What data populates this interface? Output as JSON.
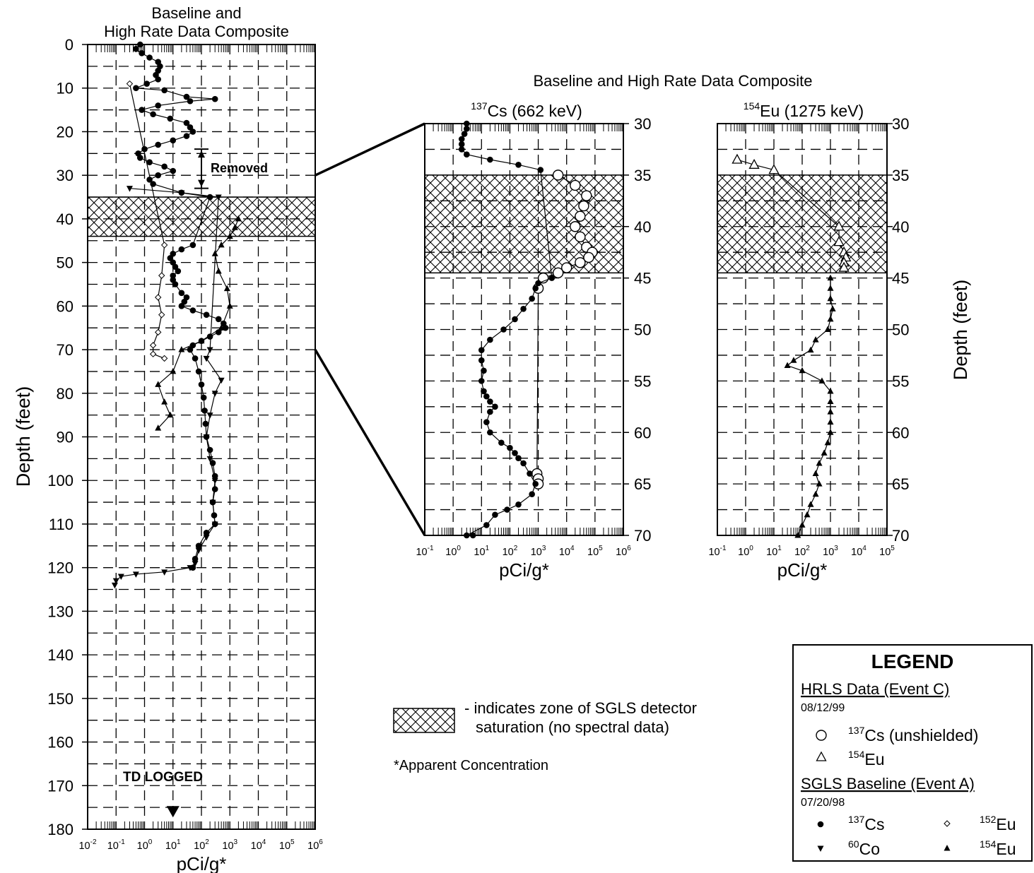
{
  "chart_data": [
    {
      "type": "scatter",
      "title": "Baseline and\nHigh Rate Data Composite",
      "xlabel": "pCi/g*",
      "ylabel": "Depth (feet)",
      "x_scale": "log",
      "xlim": [
        0.01,
        1000000
      ],
      "ylim": [
        0,
        180
      ],
      "x_tick_labels": [
        "10-2",
        "10-1",
        "100",
        "101",
        "102",
        "103",
        "104",
        "105",
        "106"
      ],
      "y_ticks": [
        0,
        10,
        20,
        30,
        40,
        50,
        60,
        70,
        80,
        90,
        100,
        110,
        120,
        130,
        140,
        150,
        160,
        170,
        180
      ],
      "saturation_zone": [
        35,
        44
      ],
      "annotations": [
        {
          "text": "Removed",
          "depth_range": [
            24,
            33
          ]
        },
        {
          "text": "TD LOGGED",
          "depth": 176,
          "value": 10
        }
      ],
      "series": [
        {
          "name": "137Cs",
          "marker": "circle-filled",
          "points": [
            [
              0.7,
              0
            ],
            [
              0.5,
              1
            ],
            [
              0.8,
              2
            ],
            [
              1.5,
              3
            ],
            [
              3,
              4
            ],
            [
              3.5,
              5
            ],
            [
              3,
              6
            ],
            [
              2.5,
              7
            ],
            [
              3,
              8
            ],
            [
              1.2,
              9
            ],
            [
              0.5,
              10
            ],
            [
              5,
              10.5
            ],
            [
              30,
              12
            ],
            [
              300,
              12.5
            ],
            [
              40,
              13
            ],
            [
              3,
              14
            ],
            [
              0.8,
              15
            ],
            [
              2,
              16
            ],
            [
              8,
              17
            ],
            [
              30,
              18
            ],
            [
              40,
              19
            ],
            [
              50,
              20
            ],
            [
              30,
              21
            ],
            [
              10,
              22
            ],
            [
              3,
              23
            ],
            [
              1,
              24
            ],
            [
              0.6,
              25
            ],
            [
              0.7,
              26
            ],
            [
              1.5,
              27
            ],
            [
              5,
              28
            ],
            [
              10,
              29
            ],
            [
              3,
              30
            ],
            [
              1.5,
              31
            ],
            [
              2,
              32
            ],
            [
              20,
              34
            ],
            [
              200,
              35
            ],
            [
              50,
              46
            ],
            [
              20,
              47
            ],
            [
              10,
              48
            ],
            [
              8,
              49
            ],
            [
              10,
              50
            ],
            [
              12,
              51
            ],
            [
              15,
              52
            ],
            [
              10,
              53
            ],
            [
              10,
              54
            ],
            [
              12,
              55
            ],
            [
              20,
              57
            ],
            [
              30,
              58
            ],
            [
              25,
              59
            ],
            [
              20,
              60
            ],
            [
              50,
              61
            ],
            [
              150,
              62
            ],
            [
              400,
              63
            ],
            [
              600,
              64
            ],
            [
              700,
              65
            ],
            [
              400,
              66
            ],
            [
              200,
              67
            ],
            [
              100,
              68
            ],
            [
              50,
              69
            ],
            [
              40,
              70
            ],
            [
              60,
              72
            ],
            [
              80,
              75
            ],
            [
              100,
              78
            ],
            [
              120,
              81
            ],
            [
              130,
              84
            ],
            [
              140,
              87
            ],
            [
              150,
              90
            ],
            [
              200,
              93
            ],
            [
              250,
              96
            ],
            [
              300,
              99
            ],
            [
              300,
              102
            ],
            [
              250,
              105
            ],
            [
              280,
              108
            ],
            [
              300,
              110
            ],
            [
              150,
              112
            ],
            [
              80,
              115
            ],
            [
              60,
              118
            ],
            [
              50,
              120
            ]
          ]
        },
        {
          "name": "60Co",
          "marker": "triangle-down-filled",
          "points": [
            [
              0.3,
              33
            ],
            [
              20,
              34
            ],
            [
              400,
              35
            ],
            [
              200,
              70
            ],
            [
              150,
              72
            ],
            [
              500,
              77
            ],
            [
              300,
              80
            ],
            [
              200,
              85
            ],
            [
              150,
              90
            ],
            [
              200,
              95
            ],
            [
              300,
              100
            ],
            [
              250,
              105
            ],
            [
              300,
              110
            ],
            [
              150,
              113
            ],
            [
              80,
              116
            ],
            [
              60,
              119
            ],
            [
              40,
              120
            ],
            [
              5,
              121
            ],
            [
              0.5,
              121.5
            ],
            [
              0.15,
              122
            ],
            [
              0.1,
              123
            ],
            [
              0.09,
              124
            ]
          ]
        },
        {
          "name": "152Eu",
          "marker": "diamond",
          "points": [
            [
              0.3,
              9
            ],
            [
              5,
              46
            ],
            [
              4,
              53
            ],
            [
              3,
              58
            ],
            [
              4,
              62
            ],
            [
              3,
              66
            ],
            [
              2,
              69
            ],
            [
              2,
              71
            ],
            [
              5,
              72
            ]
          ]
        },
        {
          "name": "154Eu",
          "marker": "triangle-filled",
          "points": [
            [
              2000,
              40
            ],
            [
              1500,
              42
            ],
            [
              1000,
              44
            ],
            [
              500,
              46
            ],
            [
              300,
              48
            ],
            [
              400,
              52
            ],
            [
              800,
              56
            ],
            [
              1000,
              60
            ],
            [
              500,
              65
            ],
            [
              100,
              68
            ],
            [
              20,
              70
            ],
            [
              10,
              75
            ],
            [
              3,
              78
            ],
            [
              5,
              82
            ],
            [
              8,
              85
            ],
            [
              3,
              88
            ]
          ]
        }
      ]
    },
    {
      "type": "scatter",
      "title": "Baseline and High Rate Data Composite",
      "subtitle": "137Cs (662 keV)",
      "xlabel": "pCi/g*",
      "x_scale": "log",
      "xlim": [
        0.1,
        1000000
      ],
      "ylim": [
        30,
        70
      ],
      "x_tick_labels": [
        "10-1",
        "100",
        "101",
        "102",
        "103",
        "104",
        "105",
        "106"
      ],
      "y_ticks": [
        30,
        35,
        40,
        45,
        50,
        55,
        60,
        65,
        70
      ],
      "saturation_zone": [
        35,
        44.5
      ],
      "series": [
        {
          "name": "137Cs (unshielded)",
          "marker": "circle-open",
          "points": [
            [
              5000,
              35
            ],
            [
              20000,
              36
            ],
            [
              50000,
              37
            ],
            [
              40000,
              38
            ],
            [
              30000,
              39
            ],
            [
              20000,
              40
            ],
            [
              30000,
              41
            ],
            [
              50000,
              42
            ],
            [
              80000,
              42.5
            ],
            [
              60000,
              43
            ],
            [
              30000,
              43.5
            ],
            [
              10000,
              44
            ],
            [
              5000,
              44.5
            ],
            [
              1500,
              45
            ],
            [
              1000,
              46
            ],
            [
              900,
              64
            ],
            [
              1000,
              64.5
            ],
            [
              1000,
              65
            ]
          ]
        },
        {
          "name": "137Cs",
          "marker": "circle-filled",
          "points": [
            [
              3,
              30
            ],
            [
              3,
              30.5
            ],
            [
              2.5,
              31
            ],
            [
              2,
              31.5
            ],
            [
              2,
              32
            ],
            [
              2,
              32.5
            ],
            [
              3,
              33
            ],
            [
              20,
              33.5
            ],
            [
              200,
              34
            ],
            [
              1200,
              34.5
            ],
            [
              3000,
              45
            ],
            [
              1000,
              45.5
            ],
            [
              800,
              46
            ],
            [
              600,
              47
            ],
            [
              300,
              48
            ],
            [
              150,
              49
            ],
            [
              60,
              50
            ],
            [
              20,
              51
            ],
            [
              10,
              52
            ],
            [
              10,
              53
            ],
            [
              12,
              54
            ],
            [
              10,
              55
            ],
            [
              12,
              56
            ],
            [
              15,
              56.5
            ],
            [
              20,
              57
            ],
            [
              30,
              57.5
            ],
            [
              20,
              58
            ],
            [
              15,
              59
            ],
            [
              20,
              60
            ],
            [
              50,
              61
            ],
            [
              100,
              61.5
            ],
            [
              150,
              62
            ],
            [
              200,
              62.5
            ],
            [
              300,
              63
            ],
            [
              500,
              64
            ],
            [
              800,
              65
            ],
            [
              600,
              66
            ],
            [
              200,
              67
            ],
            [
              80,
              67.5
            ],
            [
              30,
              68
            ],
            [
              15,
              69
            ],
            [
              3,
              70
            ],
            [
              5,
              70
            ]
          ]
        }
      ]
    },
    {
      "type": "scatter",
      "subtitle": "154Eu (1275 keV)",
      "xlabel": "pCi/g*",
      "ylabel": "Depth (feet)",
      "x_scale": "log",
      "xlim": [
        0.1,
        100000
      ],
      "ylim": [
        30,
        70
      ],
      "x_tick_labels": [
        "10-1",
        "100",
        "101",
        "102",
        "103",
        "104",
        "105"
      ],
      "y_ticks": [
        30,
        35,
        40,
        45,
        50,
        55,
        60,
        65,
        70
      ],
      "saturation_zone": [
        35,
        44.5
      ],
      "series": [
        {
          "name": "154Eu (HRLS)",
          "marker": "triangle-open",
          "points": [
            [
              0.5,
              33.5
            ],
            [
              2,
              34
            ],
            [
              10,
              34.5
            ],
            [
              2000,
              40
            ],
            [
              2000,
              41.5
            ],
            [
              3000,
              42.5
            ],
            [
              3500,
              43
            ],
            [
              3000,
              43.5
            ],
            [
              3000,
              44
            ]
          ]
        },
        {
          "name": "154Eu",
          "marker": "triangle-filled",
          "points": [
            [
              1000,
              45
            ],
            [
              1000,
              46
            ],
            [
              1000,
              47
            ],
            [
              1200,
              48
            ],
            [
              1000,
              49
            ],
            [
              800,
              50
            ],
            [
              300,
              51
            ],
            [
              200,
              52
            ],
            [
              50,
              53
            ],
            [
              30,
              53.5
            ],
            [
              100,
              54
            ],
            [
              500,
              55
            ],
            [
              1000,
              56
            ],
            [
              1000,
              57
            ],
            [
              1000,
              58
            ],
            [
              1000,
              59
            ],
            [
              1000,
              60
            ],
            [
              800,
              61
            ],
            [
              600,
              62
            ],
            [
              400,
              63
            ],
            [
              300,
              64
            ],
            [
              400,
              65
            ],
            [
              300,
              66
            ],
            [
              200,
              67
            ],
            [
              150,
              68
            ],
            [
              100,
              69
            ],
            [
              70,
              70
            ]
          ]
        }
      ]
    }
  ],
  "legend": {
    "title": "LEGEND",
    "hrls_header": "HRLS Data (Event C)",
    "hrls_date": "08/12/99",
    "hrls_cs": "137Cs (unshielded)",
    "hrls_eu": "154Eu",
    "sgls_header": "SGLS Baseline (Event A)",
    "sgls_date": "07/20/98",
    "sgls_cs": "137Cs",
    "sgls_co": "60Co",
    "sgls_eu152": "152Eu",
    "sgls_eu154": "154Eu"
  },
  "notes": {
    "saturation_line1": "- indicates zone of SGLS detector",
    "saturation_line2": "saturation (no spectral data)",
    "apparent": "*Apparent Concentration"
  }
}
